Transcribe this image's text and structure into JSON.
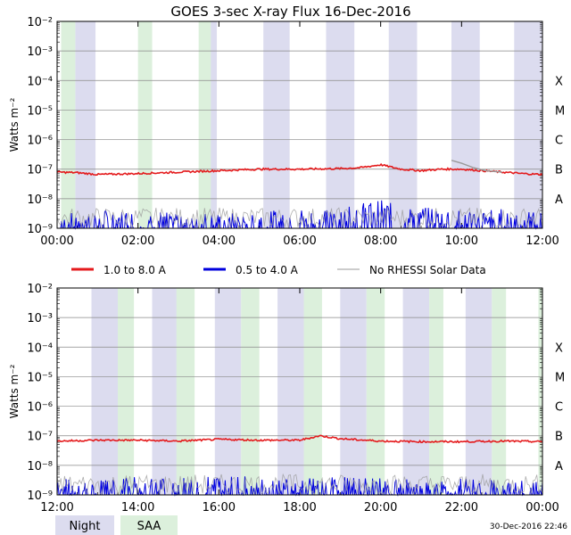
{
  "title": "GOES 3-sec X-ray Flux   16-Dec-2016",
  "footer_timestamp": "30-Dec-2016 22:46",
  "colors": {
    "long": "#e41a1c",
    "short": "#0000dd",
    "no_rhessi": "#9a9a9a",
    "night": "#dcdcef",
    "saa": "#dcf0dc",
    "grid": "#888888"
  },
  "legend": {
    "series": [
      {
        "key": "long",
        "label": "1.0 to 8.0 A"
      },
      {
        "key": "short",
        "label": "0.5 to 4.0 A"
      },
      {
        "key": "no_rhessi",
        "label": "No RHESSI Solar Data"
      }
    ],
    "bands": [
      {
        "key": "night",
        "label": "Night"
      },
      {
        "key": "saa",
        "label": "SAA"
      }
    ]
  },
  "chart_data": [
    {
      "type": "line",
      "id": "top",
      "ylabel": "Watts m⁻²",
      "yscale": "log",
      "ylim": [
        1e-09,
        0.01
      ],
      "y_ticks": [
        "10⁻²",
        "10⁻³",
        "10⁻⁴",
        "10⁻⁵",
        "10⁻⁶",
        "10⁻⁷",
        "10⁻⁸",
        "10⁻⁹"
      ],
      "classes": [
        "X",
        "M",
        "C",
        "B",
        "A"
      ],
      "xlim_hours": [
        0,
        12
      ],
      "x_ticks": [
        "00:00",
        "02:00",
        "04:00",
        "06:00",
        "08:00",
        "10:00",
        "12:00"
      ],
      "night": [
        [
          0.45,
          0.95
        ],
        [
          3.55,
          3.95
        ],
        [
          5.1,
          5.75
        ],
        [
          6.65,
          7.35
        ],
        [
          8.2,
          8.9
        ],
        [
          9.75,
          10.45
        ],
        [
          11.3,
          12.0
        ]
      ],
      "saa": [
        [
          0.1,
          0.45
        ],
        [
          2.0,
          2.35
        ],
        [
          3.5,
          3.8
        ]
      ],
      "series": [
        {
          "name": "1.0 to 8.0 A",
          "key": "long",
          "points": [
            [
              0,
              -7.1
            ],
            [
              0.5,
              -7.12
            ],
            [
              1,
              -7.18
            ],
            [
              2,
              -7.15
            ],
            [
              3,
              -7.1
            ],
            [
              4,
              -7.05
            ],
            [
              5,
              -7.0
            ],
            [
              6,
              -7.0
            ],
            [
              7,
              -6.98
            ],
            [
              7.5,
              -6.95
            ],
            [
              8,
              -6.85
            ],
            [
              8.5,
              -7.0
            ],
            [
              9,
              -7.05
            ],
            [
              9.5,
              -7.0
            ],
            [
              10,
              -7.0
            ],
            [
              10.5,
              -7.05
            ],
            [
              11,
              -7.1
            ],
            [
              11.5,
              -7.15
            ],
            [
              12,
              -7.18
            ]
          ]
        },
        {
          "name": "0.5 to 4.0 A",
          "key": "short",
          "points": [
            [
              0,
              -8.9
            ],
            [
              1,
              -8.7
            ],
            [
              2,
              -8.8
            ],
            [
              3,
              -8.75
            ],
            [
              4,
              -8.85
            ],
            [
              5,
              -8.8
            ],
            [
              6,
              -8.7
            ],
            [
              7,
              -8.6
            ],
            [
              8,
              -8.4
            ],
            [
              8.5,
              -8.6
            ],
            [
              9,
              -8.65
            ],
            [
              10,
              -8.7
            ],
            [
              11,
              -8.7
            ],
            [
              12,
              -8.8
            ]
          ]
        },
        {
          "name": "No RHESSI Solar Data",
          "key": "no_rhessi",
          "points": [
            [
              9.75,
              -6.7
            ],
            [
              10.0,
              -6.8
            ],
            [
              10.3,
              -6.95
            ],
            [
              10.6,
              -7.05
            ],
            [
              11.0,
              -7.1
            ]
          ]
        }
      ]
    },
    {
      "type": "line",
      "id": "bottom",
      "ylabel": "Watts m⁻²",
      "yscale": "log",
      "ylim": [
        1e-09,
        0.01
      ],
      "y_ticks": [
        "10⁻²",
        "10⁻³",
        "10⁻⁴",
        "10⁻⁵",
        "10⁻⁶",
        "10⁻⁷",
        "10⁻⁸",
        "10⁻⁹"
      ],
      "classes": [
        "X",
        "M",
        "C",
        "B",
        "A"
      ],
      "xlim_hours": [
        12,
        24
      ],
      "x_ticks": [
        "12:00",
        "14:00",
        "16:00",
        "18:00",
        "20:00",
        "22:00",
        "00:00"
      ],
      "night": [
        [
          12.85,
          13.5
        ],
        [
          14.35,
          15.0
        ],
        [
          15.9,
          16.55
        ],
        [
          17.45,
          18.1
        ],
        [
          19.0,
          19.65
        ],
        [
          20.55,
          21.2
        ],
        [
          22.1,
          22.75
        ]
      ],
      "saa": [
        [
          13.5,
          13.9
        ],
        [
          14.95,
          15.4
        ],
        [
          16.55,
          17.0
        ],
        [
          18.1,
          18.55
        ],
        [
          19.65,
          20.1
        ],
        [
          21.2,
          21.55
        ],
        [
          22.75,
          23.1
        ],
        [
          23.9,
          24.0
        ]
      ],
      "series": [
        {
          "name": "1.0 to 8.0 A",
          "key": "long",
          "points": [
            [
              12,
              -7.18
            ],
            [
              13,
              -7.15
            ],
            [
              14,
              -7.15
            ],
            [
              15,
              -7.18
            ],
            [
              16,
              -7.12
            ],
            [
              17,
              -7.15
            ],
            [
              18,
              -7.15
            ],
            [
              18.5,
              -7.0
            ],
            [
              19,
              -7.1
            ],
            [
              20,
              -7.18
            ],
            [
              21,
              -7.2
            ],
            [
              22,
              -7.2
            ],
            [
              23,
              -7.18
            ],
            [
              24,
              -7.2
            ]
          ]
        },
        {
          "name": "0.5 to 4.0 A",
          "key": "short",
          "points": [
            [
              12,
              -8.8
            ],
            [
              13,
              -8.85
            ],
            [
              14,
              -8.75
            ],
            [
              15,
              -8.8
            ],
            [
              16,
              -8.7
            ],
            [
              17,
              -8.75
            ],
            [
              18,
              -8.8
            ],
            [
              19,
              -8.75
            ],
            [
              20,
              -8.8
            ],
            [
              21,
              -8.85
            ],
            [
              22,
              -8.8
            ],
            [
              23,
              -8.85
            ],
            [
              24,
              -8.9
            ]
          ]
        }
      ]
    }
  ]
}
